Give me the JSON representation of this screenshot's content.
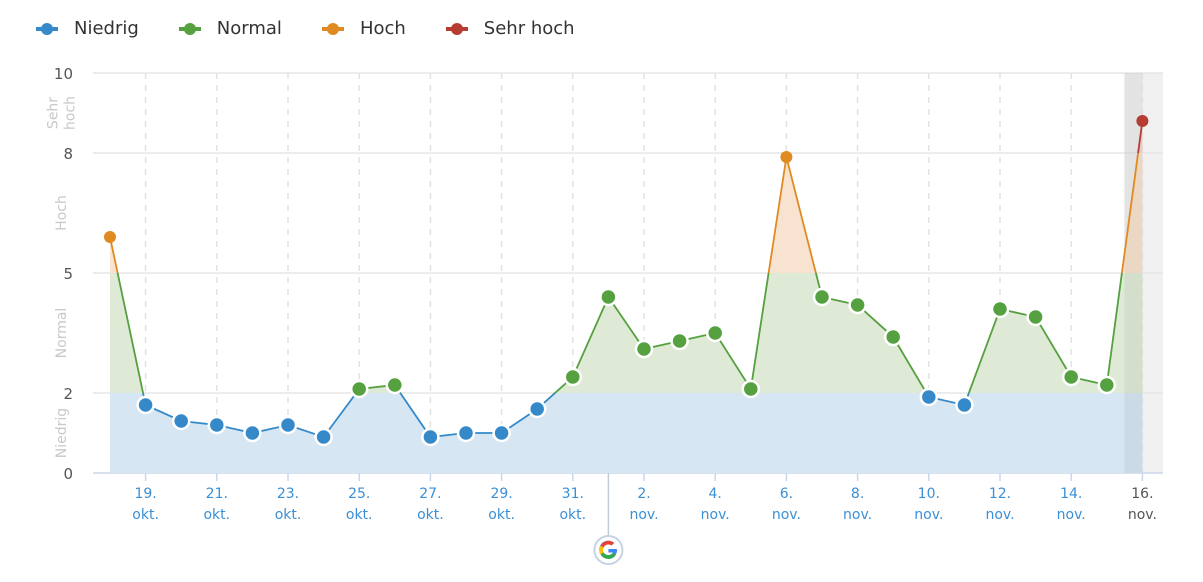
{
  "legend": [
    {
      "label": "Niedrig",
      "color": "#3589c9"
    },
    {
      "label": "Normal",
      "color": "#55a03f"
    },
    {
      "label": "Hoch",
      "color": "#e08a22"
    },
    {
      "label": "Sehr hoch",
      "color": "#b63d32"
    }
  ],
  "y_axis": {
    "ticks": [
      "0",
      "2",
      "5",
      "8",
      "10"
    ],
    "bands": [
      "Niedrig",
      "Normal",
      "Hoch",
      "Sehr hoch"
    ]
  },
  "x_axis": {
    "labels": [
      {
        "day": "19.",
        "month": "okt."
      },
      {
        "day": "21.",
        "month": "okt."
      },
      {
        "day": "23.",
        "month": "okt."
      },
      {
        "day": "25.",
        "month": "okt."
      },
      {
        "day": "27.",
        "month": "okt."
      },
      {
        "day": "29.",
        "month": "okt."
      },
      {
        "day": "31.",
        "month": "okt."
      },
      {
        "day": "2.",
        "month": "nov."
      },
      {
        "day": "4.",
        "month": "nov."
      },
      {
        "day": "6.",
        "month": "nov."
      },
      {
        "day": "8.",
        "month": "nov."
      },
      {
        "day": "10.",
        "month": "nov."
      },
      {
        "day": "12.",
        "month": "nov."
      },
      {
        "day": "14.",
        "month": "nov."
      },
      {
        "day": "16.",
        "month": "nov."
      }
    ]
  },
  "annotation": {
    "icon": "google-icon",
    "date": "1. nov."
  },
  "chart_data": {
    "type": "area",
    "title": "",
    "xlabel": "",
    "ylabel": "",
    "ylim": [
      0,
      10
    ],
    "y_ticks": [
      0,
      2,
      5,
      8,
      10
    ],
    "bands": [
      {
        "name": "Niedrig",
        "range": [
          0,
          2
        ],
        "color": "#3589c9"
      },
      {
        "name": "Normal",
        "range": [
          2,
          5
        ],
        "color": "#55a03f"
      },
      {
        "name": "Hoch",
        "range": [
          5,
          8
        ],
        "color": "#e08a22"
      },
      {
        "name": "Sehr hoch",
        "range": [
          8,
          10
        ],
        "color": "#b63d32"
      }
    ],
    "legend_position": "top",
    "grid": true,
    "x": [
      "18. okt.",
      "19. okt.",
      "20. okt.",
      "21. okt.",
      "22. okt.",
      "23. okt.",
      "24. okt.",
      "25. okt.",
      "26. okt.",
      "27. okt.",
      "28. okt.",
      "29. okt.",
      "30. okt.",
      "31. okt.",
      "1. nov.",
      "2. nov.",
      "3. nov.",
      "4. nov.",
      "5. nov.",
      "6. nov.",
      "7. nov.",
      "8. nov.",
      "9. nov.",
      "10. nov.",
      "11. nov.",
      "12. nov.",
      "13. nov.",
      "14. nov.",
      "15. nov.",
      "16. nov."
    ],
    "values": [
      5.9,
      1.7,
      1.3,
      1.2,
      1.0,
      1.2,
      0.9,
      2.1,
      2.2,
      0.9,
      1.0,
      1.0,
      1.6,
      2.4,
      4.4,
      3.1,
      3.3,
      3.5,
      2.1,
      7.9,
      4.4,
      4.2,
      3.4,
      1.9,
      1.7,
      4.1,
      3.9,
      2.4,
      2.2,
      8.8
    ],
    "annotations": [
      {
        "x": "1. nov.",
        "label": "Google update"
      }
    ],
    "highlighted_x": "16. nov."
  }
}
